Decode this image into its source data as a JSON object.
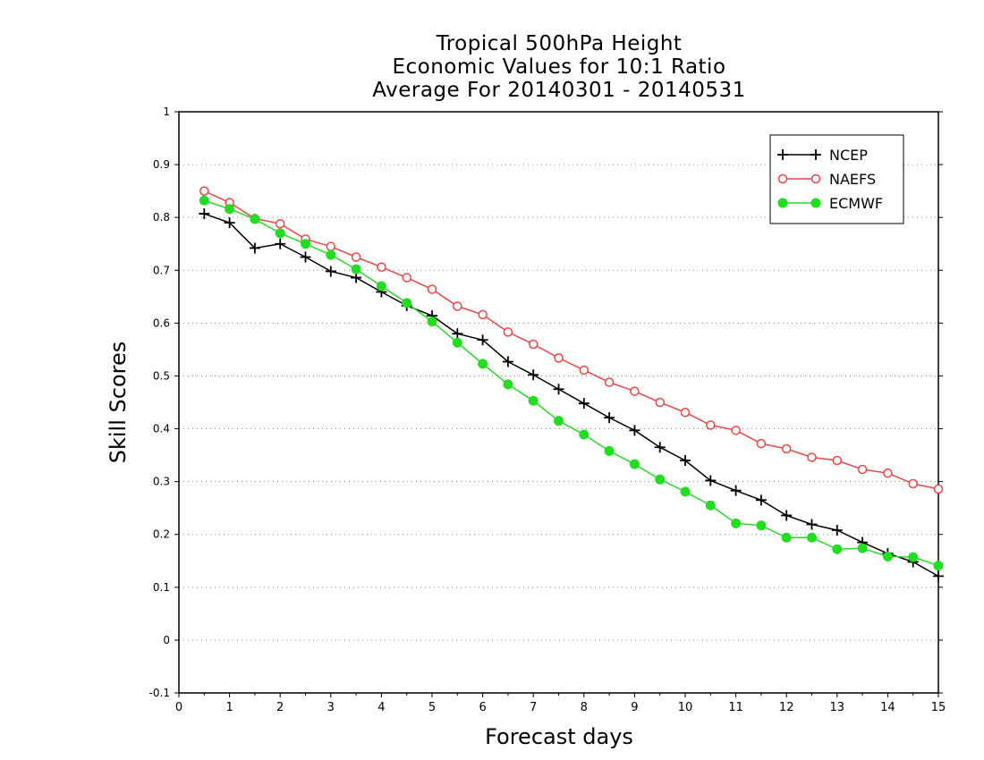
{
  "chart_data": {
    "type": "line",
    "title_lines": [
      "Tropical 500hPa Height",
      "Economic Values for 10:1 Ratio",
      "Average For 20140301 - 20140531"
    ],
    "xlabel": "Forecast days",
    "ylabel": "Skill Scores",
    "xlim": [
      0,
      15
    ],
    "ylim": [
      -0.1,
      1
    ],
    "x_ticks": [
      "0",
      "1",
      "2",
      "3",
      "4",
      "5",
      "6",
      "7",
      "8",
      "9",
      "10",
      "11",
      "12",
      "13",
      "14",
      "15"
    ],
    "y_ticks": [
      "-0.1",
      "0",
      "0.1",
      "0.2",
      "0.3",
      "0.4",
      "0.5",
      "0.6",
      "0.7",
      "0.8",
      "0.9",
      "1"
    ],
    "grid": "dotted horizontal",
    "legend_position": "top-right",
    "x": [
      0.5,
      1,
      1.5,
      2,
      2.5,
      3,
      3.5,
      4,
      4.5,
      5,
      5.5,
      6,
      6.5,
      7,
      7.5,
      8,
      8.5,
      9,
      9.5,
      10,
      10.5,
      11,
      11.5,
      12,
      12.5,
      13,
      13.5,
      14,
      14.5,
      15
    ],
    "series": [
      {
        "name": "NCEP",
        "color": "#000000",
        "marker": "plus",
        "values": [
          0.807,
          0.79,
          0.742,
          0.75,
          0.725,
          0.698,
          0.686,
          0.659,
          0.633,
          0.614,
          0.58,
          0.568,
          0.527,
          0.502,
          0.475,
          0.448,
          0.421,
          0.397,
          0.365,
          0.34,
          0.302,
          0.283,
          0.265,
          0.236,
          0.219,
          0.208,
          0.185,
          0.164,
          0.148,
          0.121
        ]
      },
      {
        "name": "NAEFS",
        "color": "#ee4444",
        "marker": "open-circle",
        "values": [
          0.85,
          0.828,
          0.798,
          0.788,
          0.759,
          0.745,
          0.725,
          0.706,
          0.686,
          0.664,
          0.632,
          0.616,
          0.583,
          0.56,
          0.534,
          0.511,
          0.488,
          0.471,
          0.45,
          0.431,
          0.407,
          0.397,
          0.372,
          0.362,
          0.346,
          0.34,
          0.323,
          0.316,
          0.296,
          0.286
        ]
      },
      {
        "name": "ECMWF",
        "color": "#22dd22",
        "marker": "filled-circle",
        "values": [
          0.832,
          0.816,
          0.797,
          0.77,
          0.75,
          0.729,
          0.702,
          0.67,
          0.638,
          0.603,
          0.563,
          0.523,
          0.484,
          0.453,
          0.415,
          0.389,
          0.358,
          0.333,
          0.304,
          0.281,
          0.255,
          0.221,
          0.217,
          0.194,
          0.194,
          0.172,
          0.174,
          0.158,
          0.157,
          0.141
        ]
      }
    ]
  }
}
